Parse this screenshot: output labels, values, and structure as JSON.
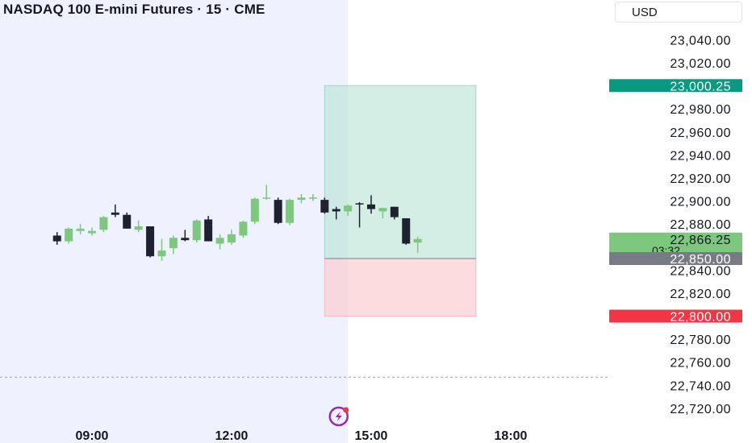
{
  "header": {
    "title": "NASDAQ 100 E-mini Futures · 15 · CME",
    "currency": "USD"
  },
  "colors": {
    "up": "#7dc87e",
    "down": "#1e2230",
    "target_label": "#089981",
    "stop_label": "#f23645",
    "current_label": "#7dc87e",
    "entry_label": "#787b86",
    "profit_zone": "#b7e2d6",
    "loss_zone": "#fbcdd2",
    "session_shade": "#eef2ff",
    "signal_icon": "#9c27b0"
  },
  "chart_data": {
    "type": "candlestick",
    "title": "NASDAQ 100 E-mini Futures · 15 · CME",
    "ylim": [
      22715,
      23055
    ],
    "y_ticks": [
      "23,040.00",
      "23,020.00",
      "22,980.00",
      "22,960.00",
      "22,940.00",
      "22,920.00",
      "22,900.00",
      "22,880.00",
      "22,840.00",
      "22,820.00",
      "22,780.00",
      "22,760.00",
      "22,740.00",
      "22,720.00"
    ],
    "y_tick_values": [
      23040,
      23020,
      22980,
      22960,
      22940,
      22920,
      22900,
      22880,
      22840,
      22820,
      22780,
      22760,
      22740,
      22720
    ],
    "x_ticks": [
      "09:00",
      "12:00",
      "15:00",
      "18:00"
    ],
    "x_tick_hours": [
      9,
      12,
      15,
      18
    ],
    "candle_interval_minutes": 15,
    "first_candle_time": "08:15",
    "candles": [
      {
        "o": 22870,
        "h": 22873,
        "l": 22862,
        "c": 22865
      },
      {
        "o": 22865,
        "h": 22877,
        "l": 22863,
        "c": 22876
      },
      {
        "o": 22874,
        "h": 22880,
        "l": 22871,
        "c": 22876
      },
      {
        "o": 22872,
        "h": 22877,
        "l": 22870,
        "c": 22874
      },
      {
        "o": 22875,
        "h": 22887,
        "l": 22873,
        "c": 22886
      },
      {
        "o": 22890,
        "h": 22897,
        "l": 22886,
        "c": 22888
      },
      {
        "o": 22888,
        "h": 22890,
        "l": 22876,
        "c": 22876
      },
      {
        "o": 22875,
        "h": 22883,
        "l": 22873,
        "c": 22878
      },
      {
        "o": 22878,
        "h": 22878,
        "l": 22851,
        "c": 22852
      },
      {
        "o": 22852,
        "h": 22867,
        "l": 22848,
        "c": 22857
      },
      {
        "o": 22859,
        "h": 22870,
        "l": 22854,
        "c": 22868
      },
      {
        "o": 22868,
        "h": 22875,
        "l": 22865,
        "c": 22866
      },
      {
        "o": 22866,
        "h": 22884,
        "l": 22864,
        "c": 22883
      },
      {
        "o": 22884,
        "h": 22887,
        "l": 22865,
        "c": 22865
      },
      {
        "o": 22863,
        "h": 22871,
        "l": 22858,
        "c": 22868
      },
      {
        "o": 22864,
        "h": 22875,
        "l": 22862,
        "c": 22871
      },
      {
        "o": 22870,
        "h": 22883,
        "l": 22868,
        "c": 22882
      },
      {
        "o": 22882,
        "h": 22903,
        "l": 22880,
        "c": 22902
      },
      {
        "o": 22903,
        "h": 22914,
        "l": 22901,
        "c": 22903
      },
      {
        "o": 22901,
        "h": 22903,
        "l": 22880,
        "c": 22881
      },
      {
        "o": 22881,
        "h": 22902,
        "l": 22879,
        "c": 22901
      },
      {
        "o": 22901,
        "h": 22906,
        "l": 22898,
        "c": 22903
      },
      {
        "o": 22902,
        "h": 22906,
        "l": 22900,
        "c": 22903
      },
      {
        "o": 22901,
        "h": 22903,
        "l": 22889,
        "c": 22890
      },
      {
        "o": 22893,
        "h": 22895,
        "l": 22884,
        "c": 22891
      },
      {
        "o": 22891,
        "h": 22897,
        "l": 22887,
        "c": 22896
      },
      {
        "o": 22898,
        "h": 22899,
        "l": 22877,
        "c": 22897
      },
      {
        "o": 22897,
        "h": 22905,
        "l": 22889,
        "c": 22893
      },
      {
        "o": 22891,
        "h": 22894,
        "l": 22885,
        "c": 22894
      },
      {
        "o": 22895,
        "h": 22895,
        "l": 22884,
        "c": 22886
      },
      {
        "o": 22885,
        "h": 22885,
        "l": 22862,
        "c": 22863
      },
      {
        "o": 22864,
        "h": 22869,
        "l": 22855,
        "c": 22867
      }
    ],
    "position": {
      "type": "long",
      "start_time": "14:00",
      "end_time": "17:15",
      "target": 23000.25,
      "entry": 22850.0,
      "stop": 22800.0
    },
    "price_labels": {
      "target": "23,000.25",
      "current": "22,866.25",
      "countdown": "03:32",
      "entry": "22,850.00",
      "stop": "22,800.00"
    },
    "current_price": 22866.25,
    "session_shade_end_time": "14:30",
    "reference_line_price": 22747,
    "signal_icon_time": "14:15"
  }
}
